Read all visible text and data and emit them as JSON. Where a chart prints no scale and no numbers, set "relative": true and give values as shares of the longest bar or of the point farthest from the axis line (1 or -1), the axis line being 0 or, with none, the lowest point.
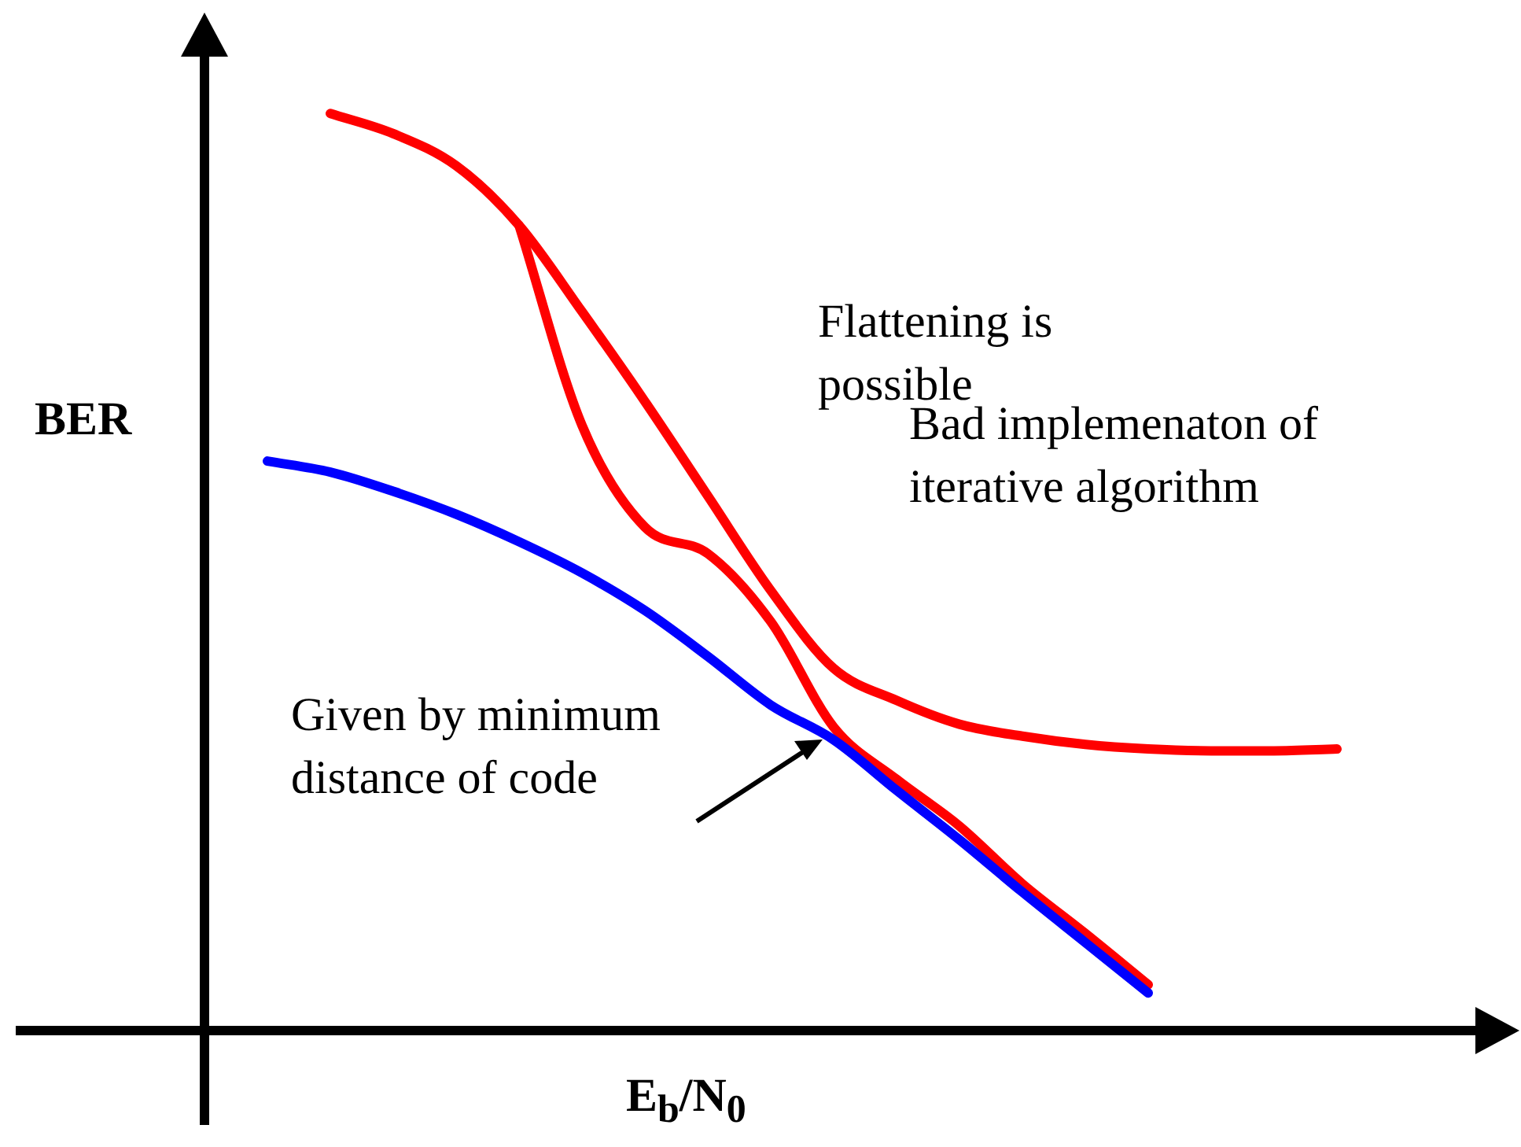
{
  "chart_data": {
    "type": "line",
    "relative": true,
    "xlabel": "E$_{b}$/N$_{0}$",
    "ylabel": "BER",
    "categories": [
      null,
      null,
      null,
      null,
      null,
      null,
      null,
      null,
      null,
      null,
      null,
      null,
      null,
      null,
      null,
      null,
      null,
      null,
      null,
      null,
      null
    ],
    "series": [
      {
        "color": "#0000ff",
        "values": [
          null,
          0.621,
          0.609,
          0.588,
          0.563,
          0.533,
          0.499,
          0.458,
          0.408,
          0.355,
          0.317,
          0.262,
          0.208,
          0.151,
          0.096,
          0.041,
          null,
          null,
          null,
          null,
          null
        ]
      },
      {
        "color": "#ff0000",
        "values": [
          null,
          null,
          1,
          0.978,
          0.943,
          0.878,
          0.784,
          0.686,
          0.583,
          0.48,
          0.395,
          0.36,
          0.334,
          0.321,
          0.312,
          0.307,
          0.305,
          0.305,
          0.307,
          null,
          null
        ]
      },
      {
        "color": "#ff0000",
        "values": [
          null,
          null,
          null,
          null,
          null,
          0.878,
          0.66,
          0.549,
          0.52,
          0.446,
          0.331,
          0.274,
          0.223,
          0.16,
          0.106,
          0.05,
          null,
          null,
          null,
          null,
          null
        ]
      }
    ],
    "annotations": [
      "Flattening is possible",
      "Bad implemenaton of iterative algorithm",
      "Given by minimum distance of code"
    ]
  }
}
